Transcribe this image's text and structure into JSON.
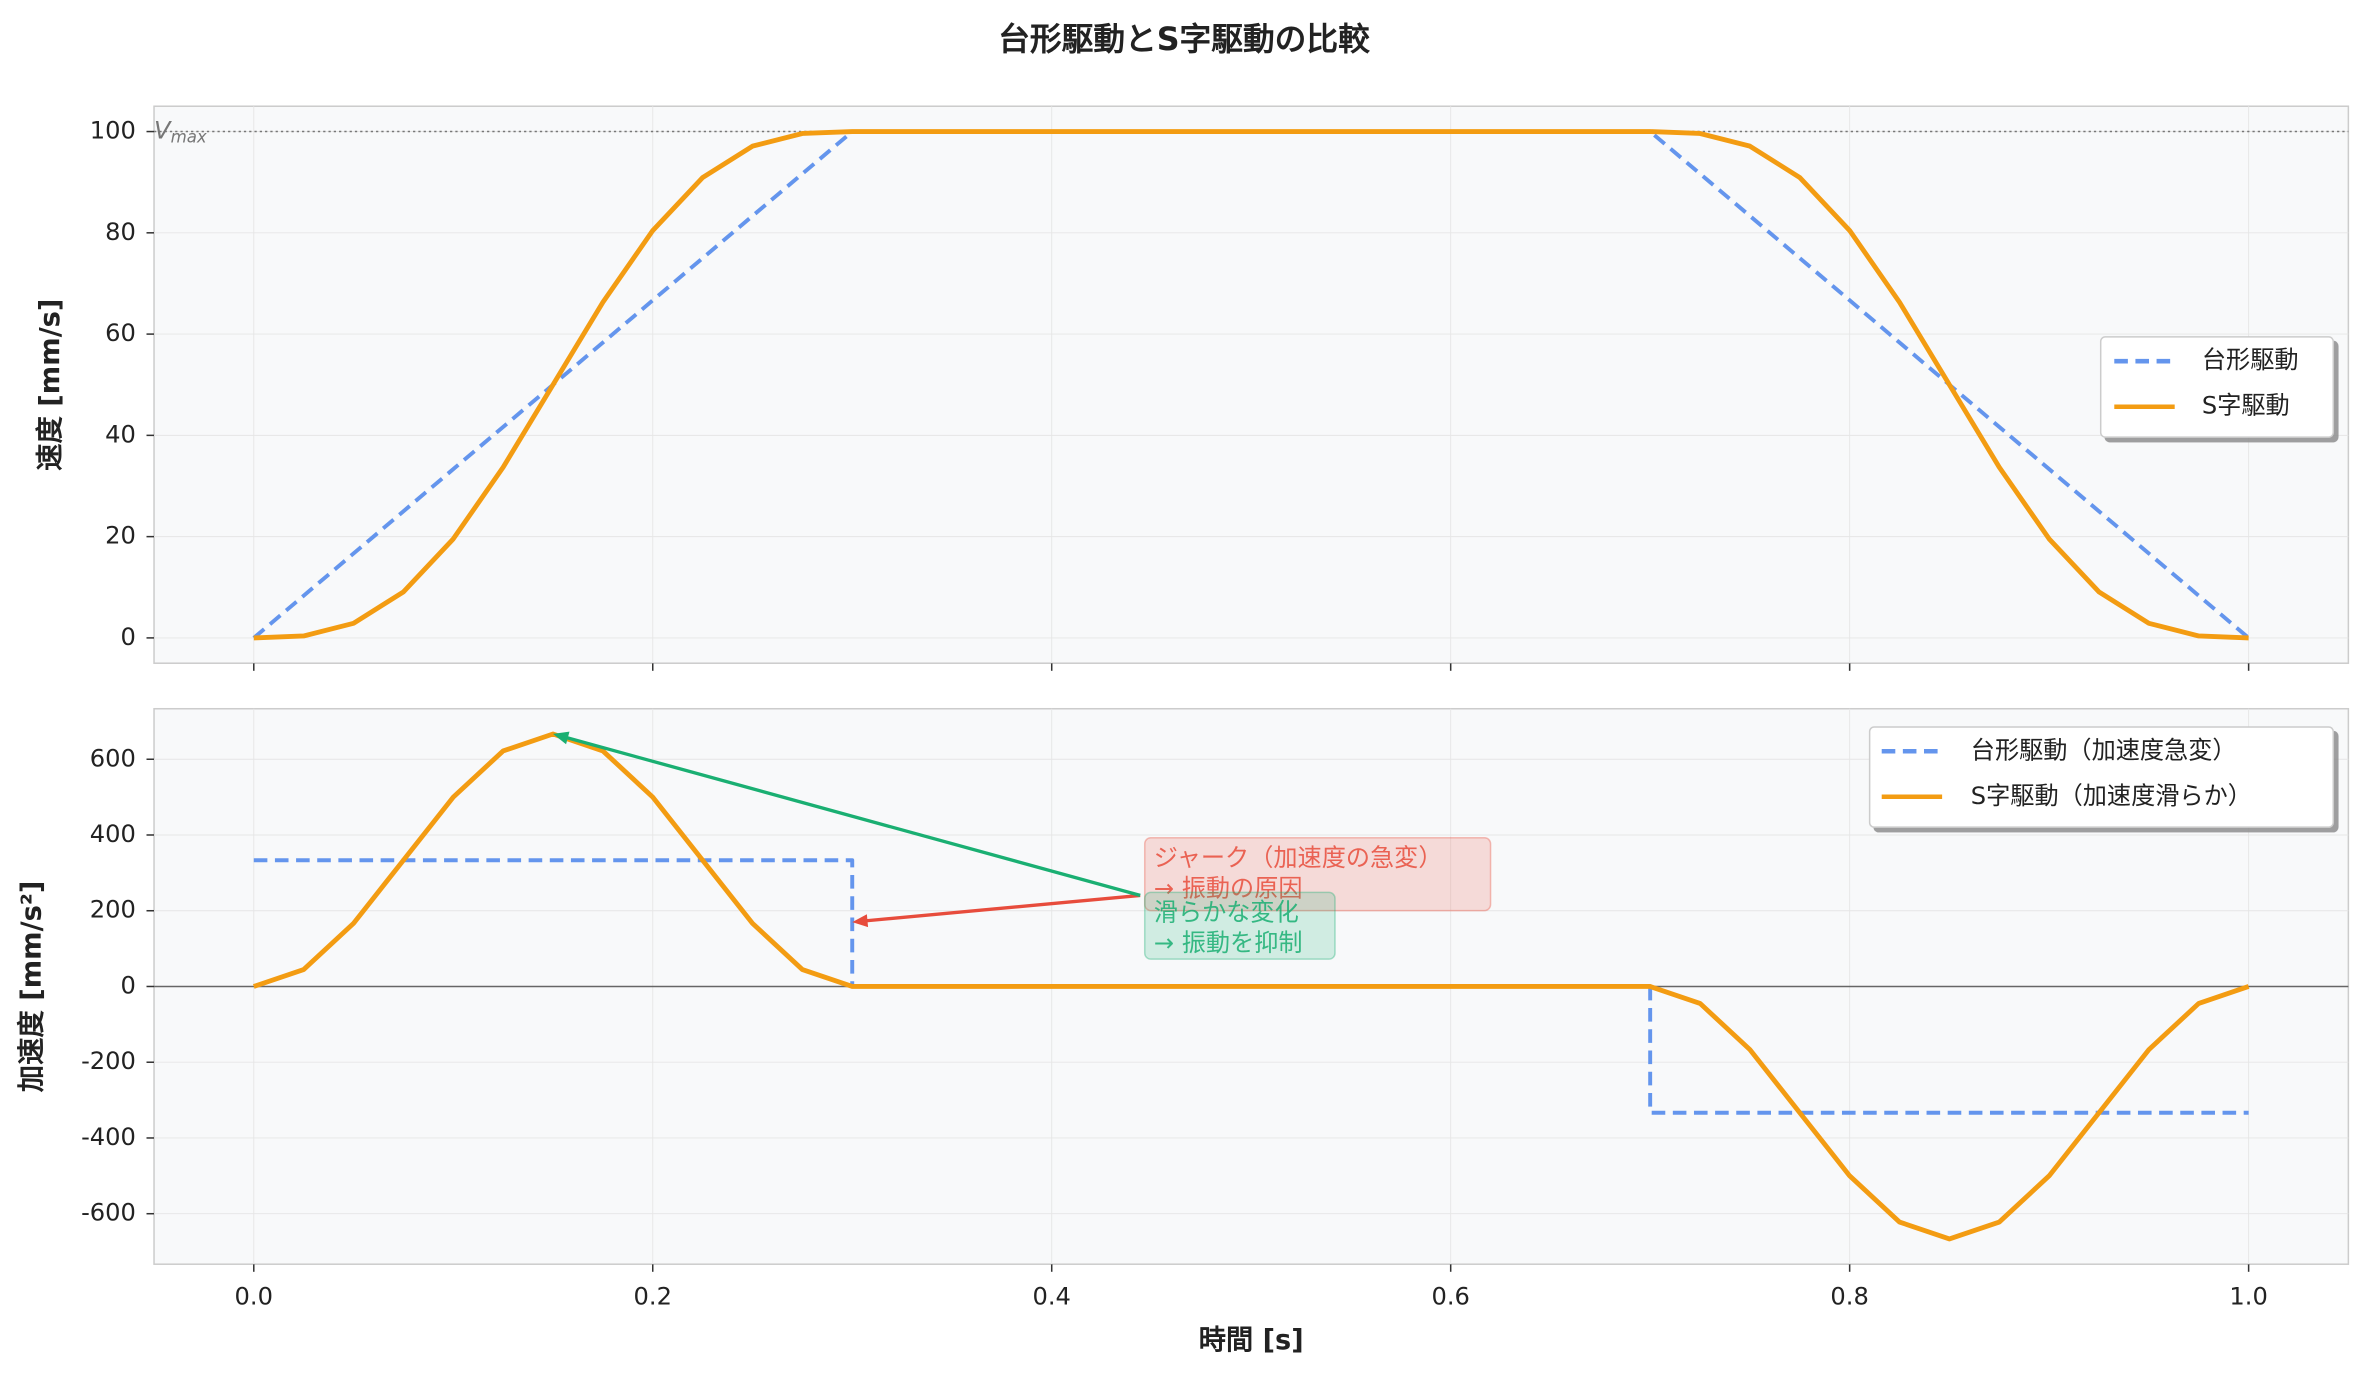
{
  "title": "台形駆動とS字駆動の比較",
  "chart_data": [
    {
      "type": "line",
      "ylabel": "速度 [mm/s]",
      "xlim": [
        -0.05,
        1.05
      ],
      "ylim": [
        -5,
        105
      ],
      "xticks": [
        0,
        0.2,
        0.4,
        0.6,
        0.8,
        1
      ],
      "yticks": [
        0,
        20,
        40,
        60,
        80,
        100
      ],
      "grid": true,
      "legend": "center right",
      "hline": 100,
      "hline_label": "V",
      "hline_label_sub": "max",
      "series": [
        {
          "name": "台形駆動",
          "color": "#6495ed",
          "dashed": true,
          "x": [
            0,
            0.3,
            0.7,
            1.0
          ],
          "values": [
            0,
            100,
            100,
            0
          ]
        },
        {
          "name": "S字駆動",
          "color": "#f39c12",
          "dashed": false,
          "x": [
            0,
            0.025,
            0.05,
            0.075,
            0.1,
            0.125,
            0.15,
            0.175,
            0.2,
            0.225,
            0.25,
            0.275,
            0.3,
            0.325,
            0.35,
            0.375,
            0.4,
            0.425,
            0.45,
            0.475,
            0.5,
            0.525,
            0.55,
            0.575,
            0.6,
            0.625,
            0.65,
            0.675,
            0.7,
            0.725,
            0.75,
            0.775,
            0.8,
            0.825,
            0.85,
            0.875,
            0.9,
            0.925,
            0.95,
            0.975,
            1.0
          ],
          "values": [
            0,
            0.38,
            2.88,
            9.08,
            19.55,
            33.71,
            50,
            66.29,
            80.45,
            90.92,
            97.12,
            99.62,
            100,
            100,
            100,
            100,
            100,
            100,
            100,
            100,
            100,
            100,
            100,
            100,
            100,
            100,
            100,
            100,
            100,
            99.62,
            97.12,
            90.92,
            80.45,
            66.29,
            50,
            33.71,
            19.55,
            9.08,
            2.88,
            0.38,
            0
          ]
        }
      ]
    },
    {
      "type": "line",
      "ylabel": "加速度 [mm/s²]",
      "xlabel": "時間 [s]",
      "xlim": [
        -0.05,
        1.05
      ],
      "ylim": [
        -733.33,
        733.33
      ],
      "xticks": [
        {
          "value": 0,
          "label": "0.0"
        },
        0.2,
        0.4,
        0.6,
        0.8,
        {
          "value": 1,
          "label": "1.0"
        }
      ],
      "yticks": [
        -600,
        -400,
        -200,
        0,
        200,
        400,
        600
      ],
      "grid": true,
      "legend": "upper right",
      "hline": 0,
      "series": [
        {
          "name": "台形駆動（加速度急変）",
          "color": "#6495ed",
          "dashed": true,
          "x": [
            0,
            0.3,
            0.3,
            0.7,
            0.7,
            1.0
          ],
          "values": [
            333.33,
            333.33,
            0,
            0,
            -333.33,
            -333.33
          ]
        },
        {
          "name": "S字駆動（加速度滑らか）",
          "color": "#f39c12",
          "dashed": false,
          "x": [
            0,
            0.025,
            0.05,
            0.075,
            0.1,
            0.125,
            0.15,
            0.175,
            0.2,
            0.225,
            0.25,
            0.275,
            0.3,
            0.325,
            0.35,
            0.375,
            0.4,
            0.425,
            0.45,
            0.475,
            0.5,
            0.525,
            0.55,
            0.575,
            0.6,
            0.625,
            0.65,
            0.675,
            0.7,
            0.725,
            0.75,
            0.775,
            0.8,
            0.825,
            0.85,
            0.875,
            0.9,
            0.925,
            0.95,
            0.975,
            1.0
          ],
          "values": [
            0,
            44.66,
            166.67,
            333.33,
            500,
            622.01,
            666.67,
            622.01,
            500,
            333.33,
            166.67,
            44.66,
            0,
            0,
            0,
            0,
            0,
            0,
            0,
            0,
            0,
            0,
            0,
            0,
            0,
            0,
            0,
            0,
            0,
            -44.66,
            -166.67,
            -333.33,
            -500,
            -622.01,
            -666.67,
            -622.01,
            -500,
            -333.33,
            -166.67,
            -44.66,
            0
          ]
        }
      ],
      "annotations": [
        {
          "lines": [
            "ジャーク（加速度の急変）",
            "→ 振動の原因"
          ],
          "color": "#e74c3c",
          "xy": [
            0.3,
            170
          ]
        },
        {
          "lines": [
            "滑らかな変化",
            "→ 振動を抑制"
          ],
          "color": "#1aaf72",
          "xy": [
            0.15,
            667
          ]
        }
      ]
    }
  ]
}
